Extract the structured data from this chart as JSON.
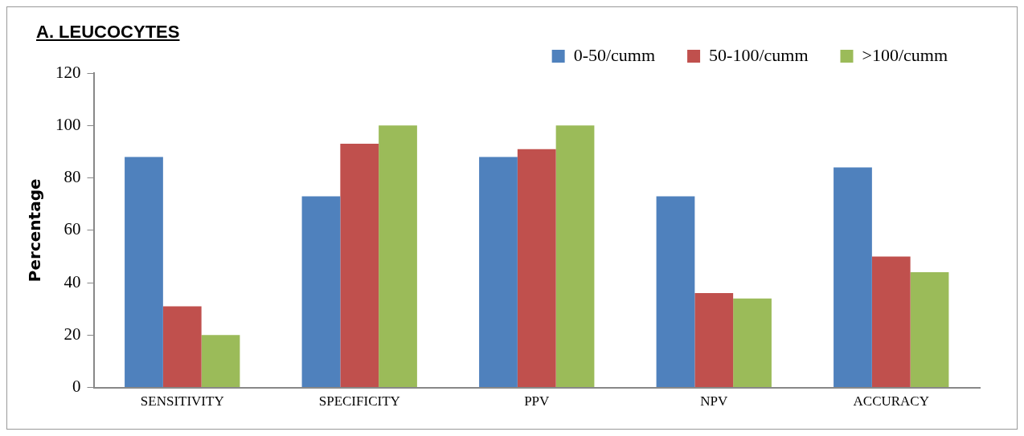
{
  "chart_data": {
    "type": "bar",
    "title": "A. LEUCOCYTES",
    "ylabel": "Percentage",
    "categories": [
      "SENSITIVITY",
      "SPECIFICITY",
      "PPV",
      "NPV",
      "ACCURACY"
    ],
    "series": [
      {
        "name": "0-50/cumm",
        "color": "#4f81bd",
        "values": [
          88,
          73,
          88,
          73,
          84
        ]
      },
      {
        "name": "50-100/cumm",
        "color": "#c0504d",
        "values": [
          31,
          93,
          91,
          36,
          50
        ]
      },
      {
        "name": ">100/cumm",
        "color": "#9bbb59",
        "values": [
          20,
          100,
          100,
          34,
          44
        ]
      }
    ],
    "ylim": [
      0,
      120
    ],
    "yticks": [
      0,
      20,
      40,
      60,
      80,
      100,
      120
    ],
    "grid": false,
    "legend": "top right"
  }
}
